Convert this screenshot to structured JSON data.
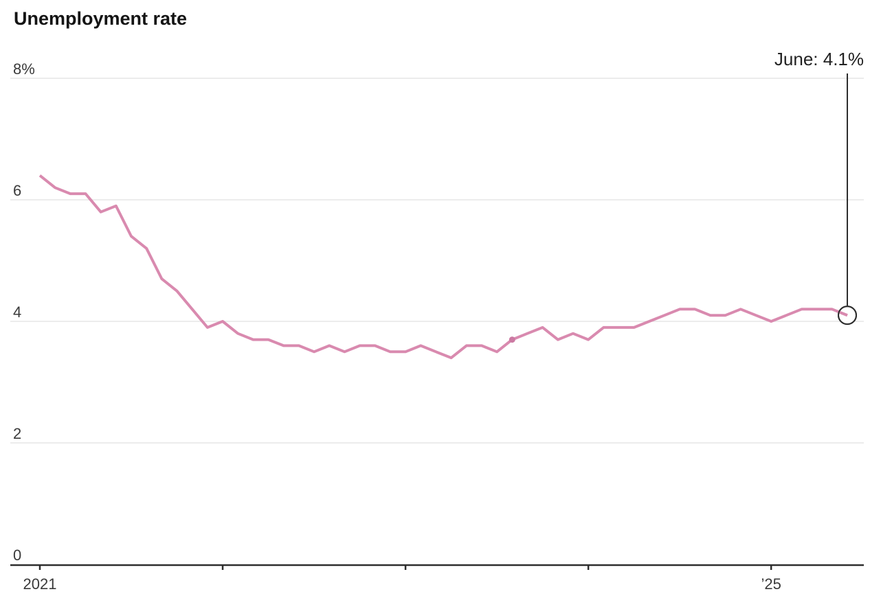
{
  "title": "Unemployment rate",
  "annotation": {
    "label": "June: 4.1%"
  },
  "colors": {
    "line": "#D98AAF",
    "highlight_dot": "#CC7AA3",
    "grid": "#E5E5E5",
    "axis": "#2D2D2D",
    "callout": "#2D2D2D",
    "end_circle_fill": "#FFFFFF",
    "title_text": "#141414",
    "tick_text": "#3A3A3A",
    "annotation_text": "#222222",
    "background": "#FFFFFF"
  },
  "chart_data": {
    "type": "line",
    "title": "Unemployment rate",
    "unit": "%",
    "frequency": "monthly",
    "x_start": "2021-01",
    "x_end": "2025-06",
    "xlabel": "",
    "ylabel": "",
    "ylim": [
      0,
      8
    ],
    "grid": "horizontal-only",
    "legend": "none",
    "y_ticks": [
      {
        "value": 8,
        "label": "8%"
      },
      {
        "value": 6,
        "label": "6"
      },
      {
        "value": 4,
        "label": "4"
      },
      {
        "value": 2,
        "label": "2"
      },
      {
        "value": 0,
        "label": "0"
      }
    ],
    "x_ticks": [
      {
        "year": 2021,
        "label": "2021"
      },
      {
        "year": 2022,
        "label": ""
      },
      {
        "year": 2023,
        "label": ""
      },
      {
        "year": 2024,
        "label": ""
      },
      {
        "year": 2025,
        "label": "’25"
      }
    ],
    "series": [
      {
        "name": "Unemployment rate",
        "values": [
          6.4,
          6.2,
          6.1,
          6.1,
          5.8,
          5.9,
          5.4,
          5.2,
          4.7,
          4.5,
          4.2,
          3.9,
          4.0,
          3.8,
          3.7,
          3.7,
          3.6,
          3.6,
          3.5,
          3.6,
          3.5,
          3.6,
          3.6,
          3.5,
          3.5,
          3.6,
          3.5,
          3.4,
          3.6,
          3.6,
          3.5,
          3.7,
          3.8,
          3.9,
          3.7,
          3.8,
          3.7,
          3.9,
          3.9,
          3.9,
          4.0,
          4.1,
          4.2,
          4.2,
          4.1,
          4.1,
          4.2,
          4.1,
          4.0,
          4.1,
          4.2,
          4.2,
          4.2,
          4.1
        ]
      }
    ],
    "values_by_year": {
      "2021": [
        6.4,
        6.2,
        6.1,
        6.1,
        5.8,
        5.9,
        5.4,
        5.2,
        4.7,
        4.5,
        4.2,
        3.9
      ],
      "2022": [
        4.0,
        3.8,
        3.7,
        3.7,
        3.6,
        3.6,
        3.5,
        3.6,
        3.5,
        3.6,
        3.6,
        3.5
      ],
      "2023": [
        3.5,
        3.6,
        3.5,
        3.4,
        3.6,
        3.6,
        3.5,
        3.7,
        3.8,
        3.9,
        3.7,
        3.8
      ],
      "2024": [
        3.7,
        3.9,
        3.9,
        3.9,
        4.0,
        4.1,
        4.2,
        4.2,
        4.1,
        4.1,
        4.2,
        4.1
      ],
      "2025": [
        4.0,
        4.1,
        4.2,
        4.2,
        4.2,
        4.1
      ]
    },
    "end_point": {
      "month": "June 2025",
      "value": 4.1,
      "label": "June: 4.1%"
    },
    "highlight_point": {
      "month": "August 2023",
      "value": 3.7,
      "index": 31
    }
  }
}
